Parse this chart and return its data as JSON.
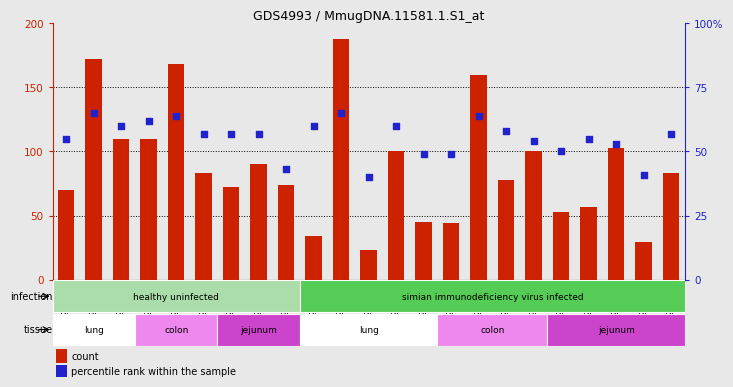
{
  "title": "GDS4993 / MmugDNA.11581.1.S1_at",
  "samples": [
    "GSM1249391",
    "GSM1249392",
    "GSM1249393",
    "GSM1249369",
    "GSM1249370",
    "GSM1249371",
    "GSM1249380",
    "GSM1249381",
    "GSM1249382",
    "GSM1249386",
    "GSM1249387",
    "GSM1249388",
    "GSM1249389",
    "GSM1249390",
    "GSM1249365",
    "GSM1249366",
    "GSM1249367",
    "GSM1249368",
    "GSM1249375",
    "GSM1249376",
    "GSM1249377",
    "GSM1249378",
    "GSM1249379"
  ],
  "counts": [
    70,
    172,
    110,
    110,
    168,
    83,
    72,
    90,
    74,
    34,
    188,
    23,
    100,
    45,
    44,
    160,
    78,
    100,
    53,
    57,
    103,
    29,
    83
  ],
  "percentiles": [
    55,
    65,
    60,
    62,
    64,
    57,
    57,
    57,
    43,
    60,
    65,
    40,
    60,
    49,
    49,
    64,
    58,
    54,
    50,
    55,
    53,
    41,
    57
  ],
  "bar_color": "#cc2200",
  "dot_color": "#2222cc",
  "infection_groups": [
    {
      "label": "healthy uninfected",
      "start": 0,
      "end": 9,
      "color": "#aaddaa"
    },
    {
      "label": "simian immunodeficiency virus infected",
      "start": 9,
      "end": 23,
      "color": "#55cc55"
    }
  ],
  "tissue_groups": [
    {
      "label": "lung",
      "start": 0,
      "end": 3,
      "color": "#ffffff"
    },
    {
      "label": "colon",
      "start": 3,
      "end": 6,
      "color": "#ee88ee"
    },
    {
      "label": "jejunum",
      "start": 6,
      "end": 9,
      "color": "#cc44cc"
    },
    {
      "label": "lung",
      "start": 9,
      "end": 14,
      "color": "#ffffff"
    },
    {
      "label": "colon",
      "start": 14,
      "end": 18,
      "color": "#ee88ee"
    },
    {
      "label": "jejunum",
      "start": 18,
      "end": 23,
      "color": "#cc44cc"
    }
  ],
  "fig_bg": "#e8e8e8",
  "plot_bg": "#e8e8e8"
}
